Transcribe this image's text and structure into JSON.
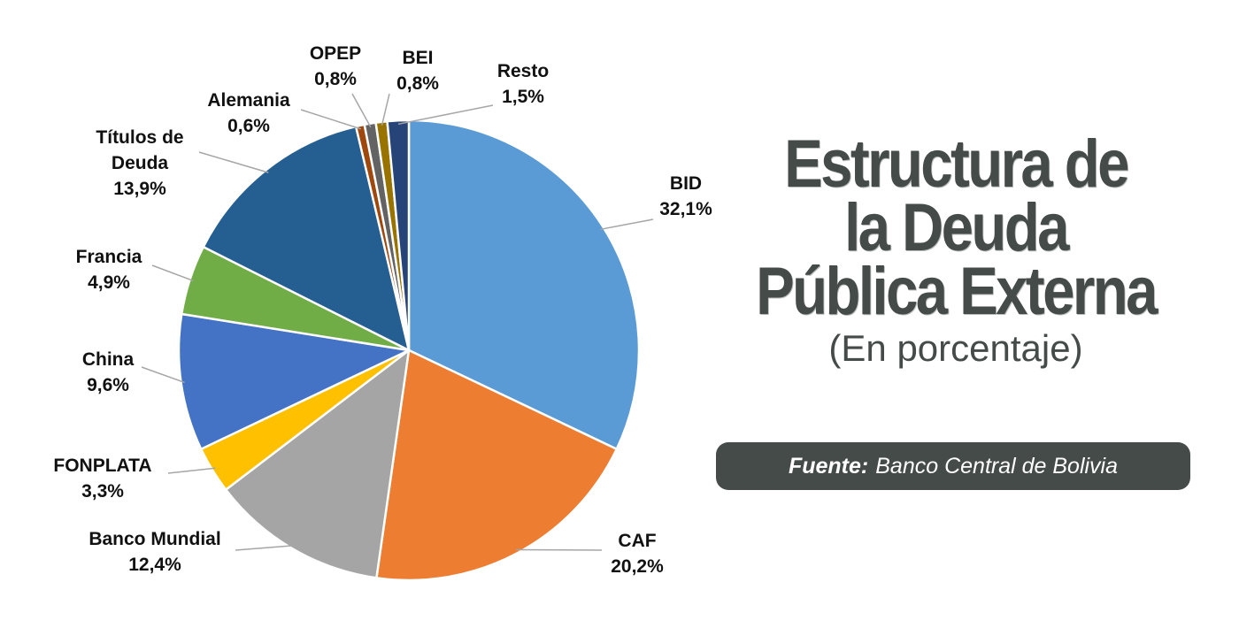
{
  "chart_data": {
    "type": "pie",
    "title_lines": [
      "Estructura de",
      "la Deuda",
      "Pública Externa"
    ],
    "subtitle": "(En porcentaje)",
    "source_label": "Fuente:",
    "source_text": "Banco Central de Bolivia",
    "slices": [
      {
        "name": "BID",
        "value_label": "32,1%",
        "value": 32.1,
        "color": "#5b9bd5"
      },
      {
        "name": "CAF",
        "value_label": "20,2%",
        "value": 20.2,
        "color": "#ed7d31"
      },
      {
        "name": "Banco Mundial",
        "value_label": "12,4%",
        "value": 12.4,
        "color": "#a5a5a5"
      },
      {
        "name": "FONPLATA",
        "value_label": "3,3%",
        "value": 3.3,
        "color": "#ffc000"
      },
      {
        "name": "China",
        "value_label": "9,6%",
        "value": 9.6,
        "color": "#4472c4"
      },
      {
        "name": "Francia",
        "value_label": "4,9%",
        "value": 4.9,
        "color": "#70ad47"
      },
      {
        "name_lines": [
          "Títulos de",
          "Deuda"
        ],
        "value_label": "13,9%",
        "value": 13.9,
        "color": "#255e91"
      },
      {
        "name": "Alemania",
        "value_label": "0,6%",
        "value": 0.6,
        "color": "#9e480e"
      },
      {
        "name": "OPEP",
        "value_label": "0,8%",
        "value": 0.8,
        "color": "#636363"
      },
      {
        "name": "BEI",
        "value_label": "0,8%",
        "value": 0.8,
        "color": "#997300"
      },
      {
        "name": "Resto",
        "value_label": "1,5%",
        "value": 1.5,
        "color": "#264478"
      }
    ]
  }
}
